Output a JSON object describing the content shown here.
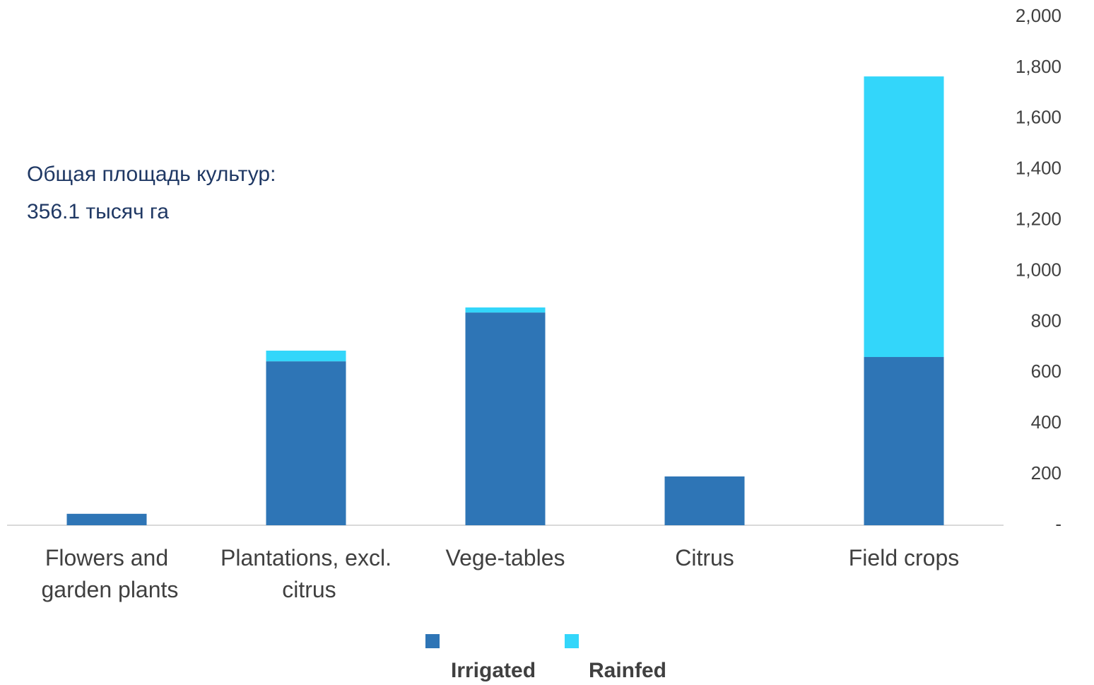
{
  "chart_data": {
    "type": "stacked_bar",
    "annotation": [
      "Общая площадь культур:",
      "356.1 тысяч га"
    ],
    "categories": [
      "Flowers and garden plants",
      "Plantations, excl. citrus",
      "Vege-tables",
      "Citrus",
      "Field crops"
    ],
    "series": [
      {
        "name": "Irrigated",
        "color": "#2e75b6",
        "values": [
          45,
          645,
          837,
          192,
          662
        ]
      },
      {
        "name": "Rainfed",
        "color": "#33d6fa",
        "values": [
          0,
          42,
          20,
          0,
          1104
        ]
      }
    ],
    "ylim": [
      0,
      2000
    ],
    "yticks": [
      {
        "value": 0,
        "label": "-"
      },
      200,
      400,
      600,
      800,
      {
        "value": 1000,
        "label": "1,000"
      },
      {
        "value": 1200,
        "label": "1,200"
      },
      {
        "value": 1400,
        "label": "1,400"
      },
      {
        "value": 1600,
        "label": "1,600"
      },
      {
        "value": 1800,
        "label": "1,800"
      },
      {
        "value": 2000,
        "label": "2,000"
      }
    ],
    "grid": false,
    "y_axis_side": "right",
    "legend": "bottom"
  }
}
